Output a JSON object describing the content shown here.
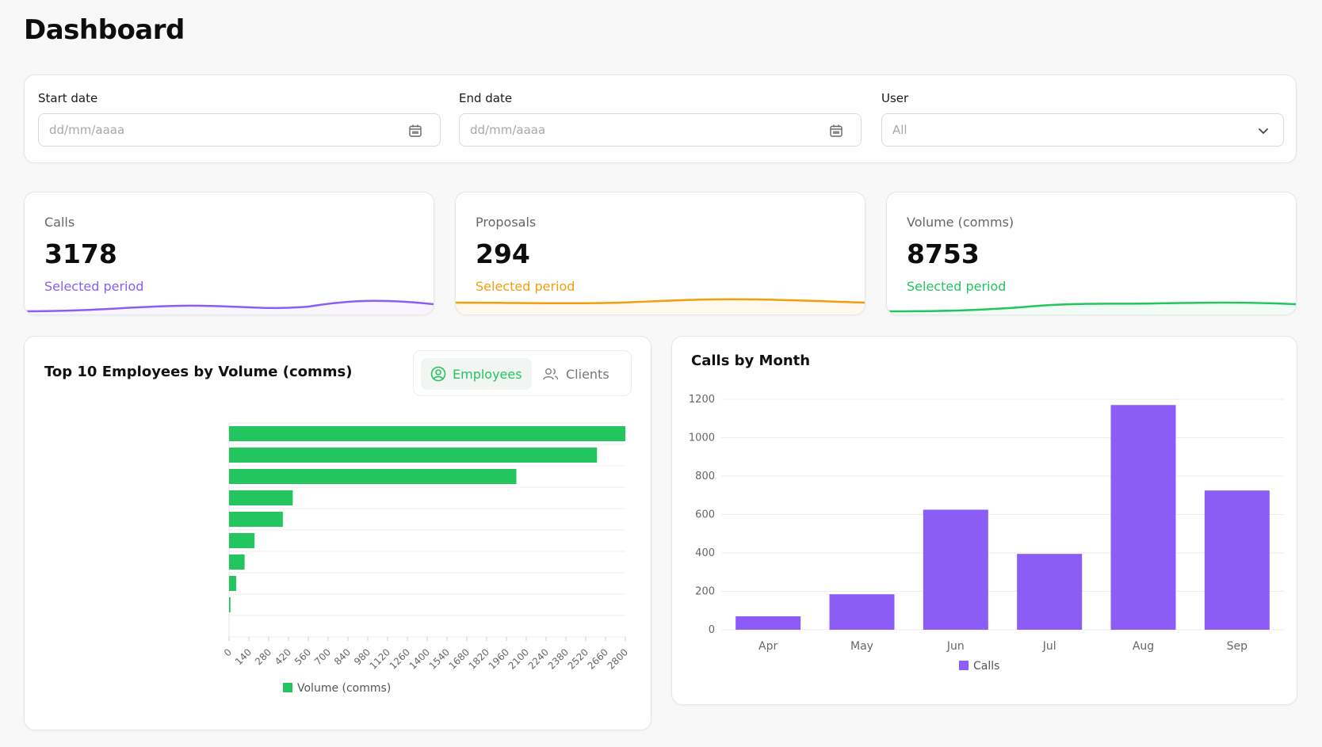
{
  "header": {
    "title": "Dashboard"
  },
  "filters": {
    "start_date": {
      "label": "Start date",
      "placeholder": "dd/mm/aaaa"
    },
    "end_date": {
      "label": "End date",
      "placeholder": "dd/mm/aaaa"
    },
    "user": {
      "label": "User",
      "value": "All"
    }
  },
  "stats": [
    {
      "label": "Calls",
      "value": "3178",
      "sub": "Selected period",
      "color": "#8b5cf6"
    },
    {
      "label": "Proposals",
      "value": "294",
      "sub": "Selected period",
      "color": "#f59e0b"
    },
    {
      "label": "Volume (comms)",
      "value": "8753",
      "sub": "Selected period",
      "color": "#22c55e"
    }
  ],
  "employees_chart": {
    "title": "Top 10 Employees by Volume (comms)",
    "toggle": {
      "employees_label": "Employees",
      "clients_label": "Clients",
      "active": "Employees"
    }
  },
  "calls_chart": {
    "title": "Calls by Month"
  },
  "chart_data": [
    {
      "type": "bar",
      "orientation": "horizontal",
      "title": "Top 10 Employees by Volume (comms)",
      "categories": [
        "",
        "",
        "",
        "",
        "",
        "",
        "",
        "",
        "",
        ""
      ],
      "series": [
        {
          "name": "Volume (comms)",
          "values": [
            2800,
            2600,
            2030,
            450,
            380,
            180,
            110,
            50,
            10,
            0
          ],
          "color": "#22c55e"
        }
      ],
      "xlim": [
        0,
        2800
      ],
      "xticks": [
        0,
        140,
        280,
        420,
        560,
        700,
        840,
        980,
        1120,
        1260,
        1400,
        1540,
        1680,
        1820,
        1960,
        2100,
        2240,
        2380,
        2520,
        2660,
        2800
      ],
      "grid": true,
      "legend": "bottom"
    },
    {
      "type": "bar",
      "title": "Calls by Month",
      "categories": [
        "Apr",
        "May",
        "Jun",
        "Jul",
        "Aug",
        "Sep"
      ],
      "series": [
        {
          "name": "Calls",
          "values": [
            70,
            185,
            625,
            395,
            1170,
            725
          ],
          "color": "#8b5cf6"
        }
      ],
      "ylim": [
        0,
        1200
      ],
      "yticks": [
        0,
        200,
        400,
        600,
        800,
        1000,
        1200
      ],
      "grid": true,
      "legend": "bottom"
    }
  ]
}
